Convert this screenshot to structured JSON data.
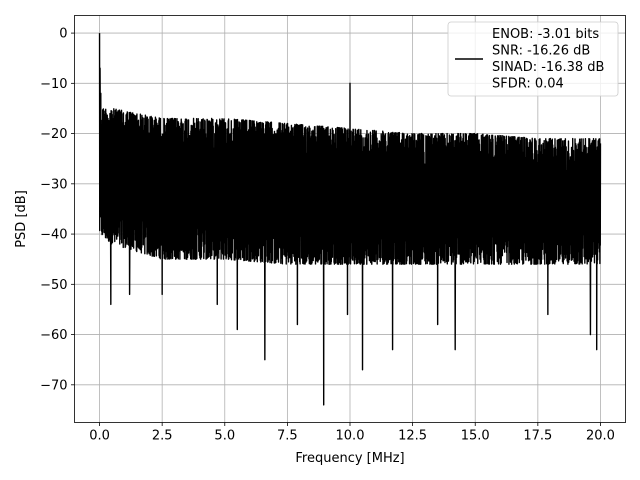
{
  "chart_data": {
    "type": "line",
    "xlabel": "Frequency [MHz]",
    "ylabel": "PSD [dB]",
    "xlim": [
      -1.0,
      21.0
    ],
    "ylim": [
      -77.5,
      3.5
    ],
    "xticks": [
      0.0,
      2.5,
      5.0,
      7.5,
      10.0,
      12.5,
      15.0,
      17.5,
      20.0
    ],
    "xtick_labels": [
      "0.0",
      "2.5",
      "5.0",
      "7.5",
      "10.0",
      "12.5",
      "15.0",
      "17.5",
      "20.0"
    ],
    "yticks": [
      0,
      -10,
      -20,
      -30,
      -40,
      -50,
      -60,
      -70
    ],
    "ytick_labels": [
      "0",
      "−10",
      "−20",
      "−30",
      "−40",
      "−50",
      "−60",
      "−70"
    ],
    "grid": true,
    "legend_position": "top-right",
    "line_color": "#000000",
    "series": [
      {
        "name": "ENOB: -3.01 bits\nSNR: -16.26 dB\nSINAD: -16.38 dB\nSFDR: 0.04",
        "noise_envelope": {
          "x": [
            0,
            0.5,
            2.5,
            5,
            7.5,
            10,
            12.5,
            15,
            17.5,
            20
          ],
          "upper": [
            -15,
            -15,
            -17,
            -17,
            -18,
            -19,
            -20,
            -20,
            -21,
            -21
          ],
          "lower": [
            -40,
            -42,
            -45,
            -45,
            -46,
            -46,
            -46,
            -46,
            -46,
            -46
          ]
        },
        "peaks": [
          {
            "x": 0.0,
            "y": 0
          },
          {
            "x": 0.02,
            "y": -7
          },
          {
            "x": 0.05,
            "y": -12
          },
          {
            "x": 10.0,
            "y": -10
          }
        ],
        "dips": [
          {
            "x": 0.45,
            "y": -54
          },
          {
            "x": 1.2,
            "y": -52
          },
          {
            "x": 2.5,
            "y": -52
          },
          {
            "x": 4.7,
            "y": -54
          },
          {
            "x": 5.5,
            "y": -59
          },
          {
            "x": 6.6,
            "y": -65
          },
          {
            "x": 7.9,
            "y": -58
          },
          {
            "x": 8.95,
            "y": -74
          },
          {
            "x": 9.9,
            "y": -56
          },
          {
            "x": 10.5,
            "y": -67
          },
          {
            "x": 11.7,
            "y": -63
          },
          {
            "x": 13.5,
            "y": -58
          },
          {
            "x": 14.2,
            "y": -63
          },
          {
            "x": 17.9,
            "y": -56
          },
          {
            "x": 19.6,
            "y": -60
          },
          {
            "x": 19.85,
            "y": -63
          }
        ]
      }
    ]
  }
}
